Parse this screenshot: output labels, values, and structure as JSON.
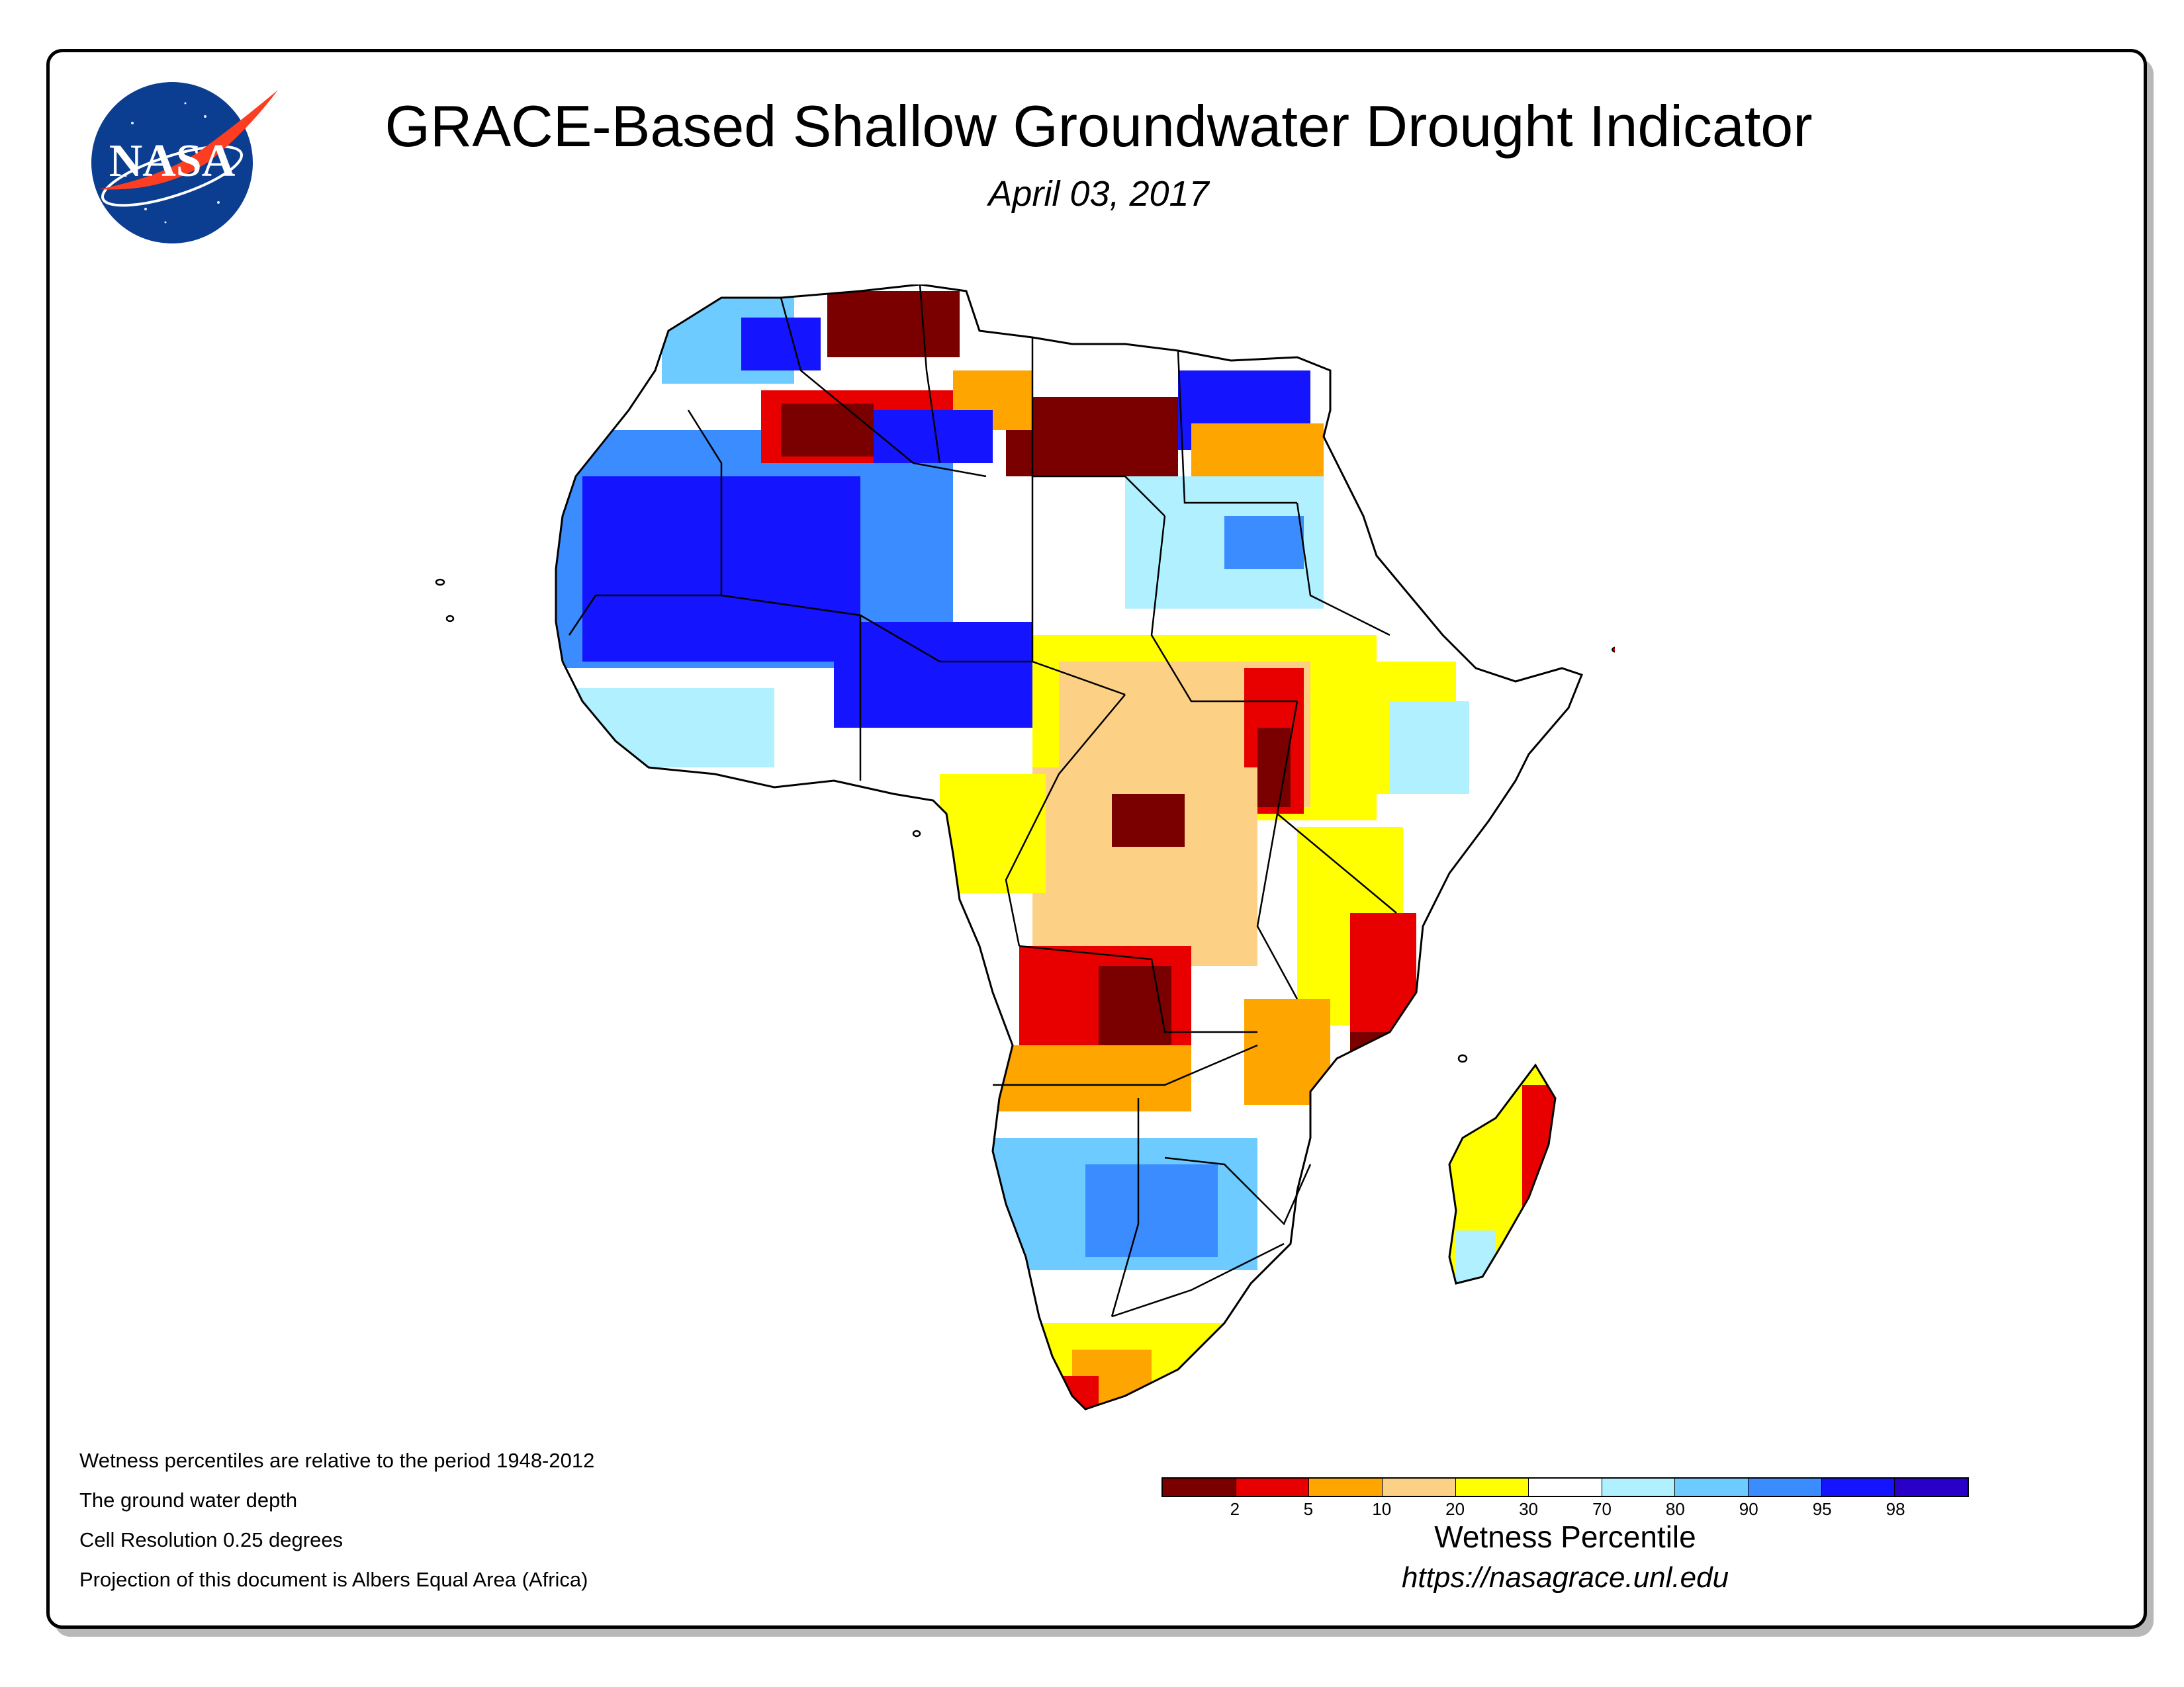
{
  "header": {
    "title": "GRACE-Based Shallow Groundwater Drought Indicator",
    "date": "April 03, 2017"
  },
  "logo": {
    "text": "NASA",
    "colors": {
      "blue": "#0b3d91",
      "red": "#fc3d21",
      "white": "#ffffff"
    }
  },
  "map": {
    "region": "Africa",
    "land_outline_color": "#000000"
  },
  "notes": [
    "Wetness percentiles are relative to the period 1948-2012",
    "The ground water depth",
    "Cell Resolution 0.25 degrees",
    "Projection of this document is Albers Equal Area (Africa)"
  ],
  "legend": {
    "title": "Wetness Percentile",
    "colors": [
      "#7a0000",
      "#e80000",
      "#ffa500",
      "#fdd185",
      "#ffff00",
      "#ffffff",
      "#b0f0ff",
      "#6ecbff",
      "#3a8cff",
      "#1414ff",
      "#2800c8"
    ],
    "tick_labels": [
      "2",
      "5",
      "10",
      "20",
      "30",
      "70",
      "80",
      "90",
      "95",
      "98"
    ]
  },
  "source_url": "https://nasagrace.unl.edu"
}
